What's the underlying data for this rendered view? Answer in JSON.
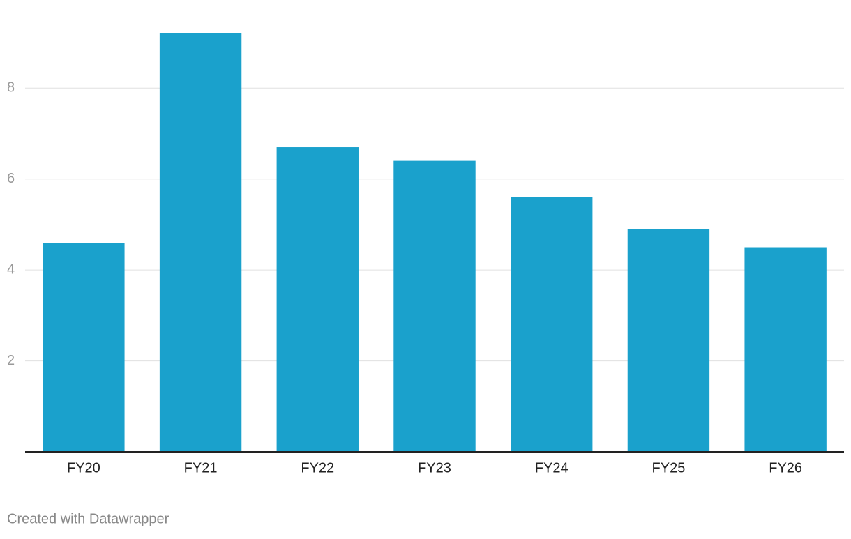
{
  "chart_data": {
    "type": "bar",
    "categories": [
      "FY20",
      "FY21",
      "FY22",
      "FY23",
      "FY24",
      "FY25",
      "FY26"
    ],
    "values": [
      4.6,
      9.2,
      6.7,
      6.4,
      5.6,
      4.9,
      4.5
    ],
    "color": "#1aa1cc",
    "ylim": [
      0,
      9.2
    ],
    "yticks": [
      2,
      4,
      6,
      8
    ],
    "grid": true,
    "credit": "Created with Datawrapper"
  }
}
